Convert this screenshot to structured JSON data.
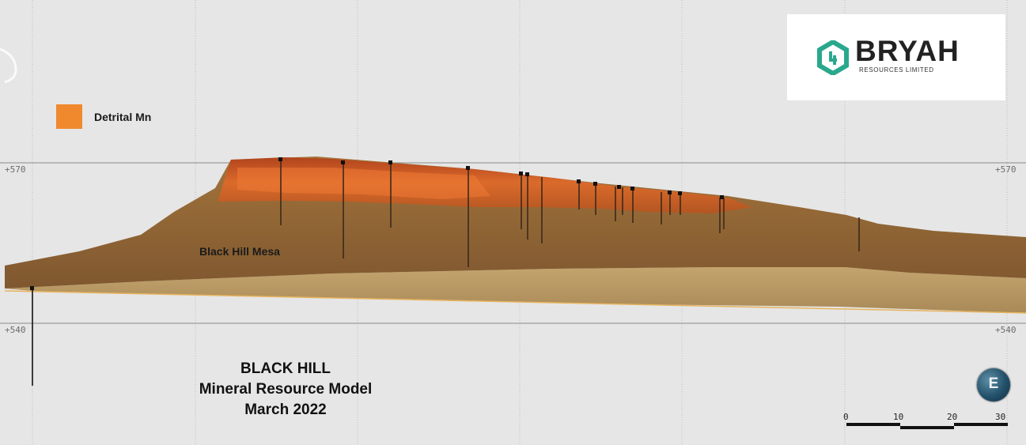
{
  "axis": {
    "rl_upper": "+570",
    "rl_lower": "+540"
  },
  "legend": {
    "label": "Detrital Mn",
    "color": "#f0892e"
  },
  "terrain_label": "Black Hill Mesa",
  "title": {
    "line1": "BLACK HILL",
    "line2": "Mineral Resource Model",
    "line3": "March 2022"
  },
  "logo": {
    "wordmark": "BRYAH",
    "tagline": "RESOURCES LIMITED",
    "color": "#2aa88d"
  },
  "compass": {
    "direction": "E"
  },
  "scale_bar": {
    "ticks": [
      "0",
      "10",
      "20",
      "30"
    ]
  },
  "colors": {
    "background": "#e6e6e6",
    "gridline": "#c4c4c4",
    "terrain": "#8d5e2a",
    "bedrock": "#b89863",
    "orebody": "#c44d15"
  }
}
